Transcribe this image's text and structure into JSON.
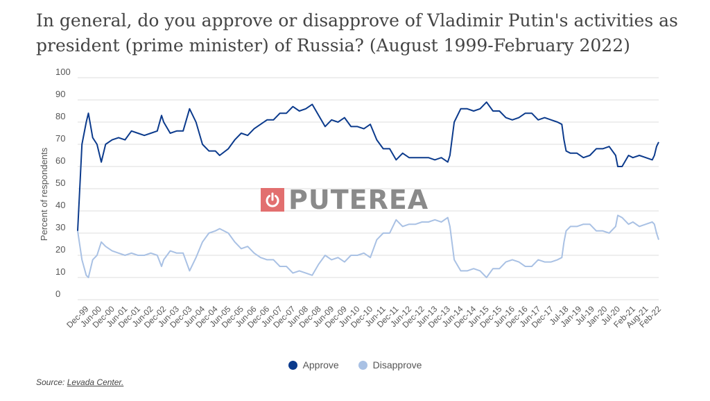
{
  "title": "In general, do you approve or disapprove of Vladimir Putin's activities as president (prime minister) of Russia? (August 1999-February 2022)",
  "source_prefix": "Source:",
  "source_link": "Levada Center.",
  "watermark": "PUTEREA",
  "chart_data": {
    "type": "line",
    "title": "In general, do you approve or disapprove of Vladimir Putin's activities as president (prime minister) of Russia? (August 1999-February 2022)",
    "xlabel": "",
    "ylabel": "Percent of respondents",
    "ylim": [
      0,
      100
    ],
    "yticks": [
      0,
      10,
      20,
      30,
      40,
      50,
      60,
      70,
      80,
      90,
      100
    ],
    "x_tick_labels": [
      "Dec-99",
      "Jun-00",
      "Dec-00",
      "Jun-01",
      "Dec-01",
      "Jun-02",
      "Dec-02",
      "Jun-03",
      "Dec-03",
      "Jun-04",
      "Dec-04",
      "Jun-05",
      "Dec-05",
      "Jun-06",
      "Dec-06",
      "Jun-07",
      "Dec-07",
      "Jun-08",
      "Dec-08",
      "Jun-09",
      "Dec-09",
      "Jun-10",
      "Dec-10",
      "Jun-11",
      "Dec-11",
      "Jun-12",
      "Dec-12",
      "Jun-13",
      "Dec-13",
      "Jun-14",
      "Dec-14",
      "Jun-15",
      "Dec-15",
      "Jun-16",
      "Dec-16",
      "Jun-17",
      "Dec-17",
      "Jul-18",
      "Jan-19",
      "Jul-19",
      "Jan-20",
      "Jul-20",
      "Feb-21",
      "Aug-21",
      "Feb-22"
    ],
    "grid": true,
    "legend_position": "bottom-center",
    "series": [
      {
        "name": "Approve",
        "color": "#0b3a8c",
        "points": [
          [
            "1999-08",
            31
          ],
          [
            "1999-10",
            70
          ],
          [
            "1999-12",
            80
          ],
          [
            "2000-01",
            84
          ],
          [
            "2000-03",
            73
          ],
          [
            "2000-05",
            70
          ],
          [
            "2000-07",
            62
          ],
          [
            "2000-09",
            70
          ],
          [
            "2000-12",
            72
          ],
          [
            "2001-03",
            73
          ],
          [
            "2001-06",
            72
          ],
          [
            "2001-09",
            76
          ],
          [
            "2001-12",
            75
          ],
          [
            "2002-03",
            74
          ],
          [
            "2002-06",
            75
          ],
          [
            "2002-09",
            76
          ],
          [
            "2002-11",
            83
          ],
          [
            "2002-12",
            80
          ],
          [
            "2003-03",
            75
          ],
          [
            "2003-06",
            76
          ],
          [
            "2003-09",
            76
          ],
          [
            "2003-12",
            86
          ],
          [
            "2004-03",
            80
          ],
          [
            "2004-06",
            70
          ],
          [
            "2004-09",
            67
          ],
          [
            "2004-12",
            67
          ],
          [
            "2005-02",
            65
          ],
          [
            "2005-06",
            68
          ],
          [
            "2005-09",
            72
          ],
          [
            "2005-12",
            75
          ],
          [
            "2006-03",
            74
          ],
          [
            "2006-06",
            77
          ],
          [
            "2006-09",
            79
          ],
          [
            "2006-12",
            81
          ],
          [
            "2007-03",
            81
          ],
          [
            "2007-06",
            84
          ],
          [
            "2007-09",
            84
          ],
          [
            "2007-12",
            87
          ],
          [
            "2008-03",
            85
          ],
          [
            "2008-06",
            86
          ],
          [
            "2008-09",
            88
          ],
          [
            "2008-12",
            83
          ],
          [
            "2009-03",
            78
          ],
          [
            "2009-06",
            81
          ],
          [
            "2009-09",
            80
          ],
          [
            "2009-12",
            82
          ],
          [
            "2010-03",
            78
          ],
          [
            "2010-06",
            78
          ],
          [
            "2010-09",
            77
          ],
          [
            "2010-12",
            79
          ],
          [
            "2011-03",
            72
          ],
          [
            "2011-06",
            68
          ],
          [
            "2011-09",
            68
          ],
          [
            "2011-12",
            63
          ],
          [
            "2012-03",
            66
          ],
          [
            "2012-06",
            64
          ],
          [
            "2012-09",
            64
          ],
          [
            "2012-12",
            64
          ],
          [
            "2013-03",
            64
          ],
          [
            "2013-06",
            63
          ],
          [
            "2013-09",
            64
          ],
          [
            "2013-12",
            62
          ],
          [
            "2014-01",
            65
          ],
          [
            "2014-03",
            80
          ],
          [
            "2014-06",
            86
          ],
          [
            "2014-09",
            86
          ],
          [
            "2014-12",
            85
          ],
          [
            "2015-03",
            86
          ],
          [
            "2015-06",
            89
          ],
          [
            "2015-09",
            85
          ],
          [
            "2015-12",
            85
          ],
          [
            "2016-03",
            82
          ],
          [
            "2016-06",
            81
          ],
          [
            "2016-09",
            82
          ],
          [
            "2016-12",
            84
          ],
          [
            "2017-03",
            84
          ],
          [
            "2017-06",
            81
          ],
          [
            "2017-09",
            82
          ],
          [
            "2017-12",
            81
          ],
          [
            "2018-03",
            80
          ],
          [
            "2018-05",
            79
          ],
          [
            "2018-06",
            72
          ],
          [
            "2018-07",
            67
          ],
          [
            "2018-09",
            66
          ],
          [
            "2018-12",
            66
          ],
          [
            "2019-03",
            64
          ],
          [
            "2019-06",
            65
          ],
          [
            "2019-09",
            68
          ],
          [
            "2019-12",
            68
          ],
          [
            "2020-03",
            69
          ],
          [
            "2020-06",
            65
          ],
          [
            "2020-07",
            60
          ],
          [
            "2020-09",
            60
          ],
          [
            "2020-12",
            65
          ],
          [
            "2021-02",
            64
          ],
          [
            "2021-05",
            65
          ],
          [
            "2021-08",
            64
          ],
          [
            "2021-11",
            63
          ],
          [
            "2021-12",
            65
          ],
          [
            "2022-01",
            69
          ],
          [
            "2022-02",
            71
          ]
        ]
      },
      {
        "name": "Disapprove",
        "color": "#a9c1e4",
        "points": [
          [
            "1999-08",
            31
          ],
          [
            "1999-10",
            18
          ],
          [
            "1999-12",
            11
          ],
          [
            "2000-01",
            10
          ],
          [
            "2000-03",
            18
          ],
          [
            "2000-05",
            20
          ],
          [
            "2000-07",
            26
          ],
          [
            "2000-09",
            24
          ],
          [
            "2000-12",
            22
          ],
          [
            "2001-03",
            21
          ],
          [
            "2001-06",
            20
          ],
          [
            "2001-09",
            21
          ],
          [
            "2001-12",
            20
          ],
          [
            "2002-03",
            20
          ],
          [
            "2002-06",
            21
          ],
          [
            "2002-09",
            20
          ],
          [
            "2002-11",
            15
          ],
          [
            "2002-12",
            18
          ],
          [
            "2003-03",
            22
          ],
          [
            "2003-06",
            21
          ],
          [
            "2003-09",
            21
          ],
          [
            "2003-12",
            13
          ],
          [
            "2004-03",
            19
          ],
          [
            "2004-06",
            26
          ],
          [
            "2004-09",
            30
          ],
          [
            "2004-12",
            31
          ],
          [
            "2005-02",
            32
          ],
          [
            "2005-06",
            30
          ],
          [
            "2005-09",
            26
          ],
          [
            "2005-12",
            23
          ],
          [
            "2006-03",
            24
          ],
          [
            "2006-06",
            21
          ],
          [
            "2006-09",
            19
          ],
          [
            "2006-12",
            18
          ],
          [
            "2007-03",
            18
          ],
          [
            "2007-06",
            15
          ],
          [
            "2007-09",
            15
          ],
          [
            "2007-12",
            12
          ],
          [
            "2008-03",
            13
          ],
          [
            "2008-06",
            12
          ],
          [
            "2008-09",
            11
          ],
          [
            "2008-12",
            16
          ],
          [
            "2009-03",
            20
          ],
          [
            "2009-06",
            18
          ],
          [
            "2009-09",
            19
          ],
          [
            "2009-12",
            17
          ],
          [
            "2010-03",
            20
          ],
          [
            "2010-06",
            20
          ],
          [
            "2010-09",
            21
          ],
          [
            "2010-12",
            19
          ],
          [
            "2011-03",
            27
          ],
          [
            "2011-06",
            30
          ],
          [
            "2011-09",
            30
          ],
          [
            "2011-12",
            36
          ],
          [
            "2012-03",
            33
          ],
          [
            "2012-06",
            34
          ],
          [
            "2012-09",
            34
          ],
          [
            "2012-12",
            35
          ],
          [
            "2013-03",
            35
          ],
          [
            "2013-06",
            36
          ],
          [
            "2013-09",
            35
          ],
          [
            "2013-12",
            37
          ],
          [
            "2014-01",
            33
          ],
          [
            "2014-03",
            18
          ],
          [
            "2014-06",
            13
          ],
          [
            "2014-09",
            13
          ],
          [
            "2014-12",
            14
          ],
          [
            "2015-03",
            13
          ],
          [
            "2015-06",
            10
          ],
          [
            "2015-09",
            14
          ],
          [
            "2015-12",
            14
          ],
          [
            "2016-03",
            17
          ],
          [
            "2016-06",
            18
          ],
          [
            "2016-09",
            17
          ],
          [
            "2016-12",
            15
          ],
          [
            "2017-03",
            15
          ],
          [
            "2017-06",
            18
          ],
          [
            "2017-09",
            17
          ],
          [
            "2017-12",
            17
          ],
          [
            "2018-03",
            18
          ],
          [
            "2018-05",
            19
          ],
          [
            "2018-06",
            26
          ],
          [
            "2018-07",
            31
          ],
          [
            "2018-09",
            33
          ],
          [
            "2018-12",
            33
          ],
          [
            "2019-03",
            34
          ],
          [
            "2019-06",
            34
          ],
          [
            "2019-09",
            31
          ],
          [
            "2019-12",
            31
          ],
          [
            "2020-03",
            30
          ],
          [
            "2020-06",
            33
          ],
          [
            "2020-07",
            38
          ],
          [
            "2020-09",
            37
          ],
          [
            "2020-12",
            34
          ],
          [
            "2021-02",
            35
          ],
          [
            "2021-05",
            33
          ],
          [
            "2021-08",
            34
          ],
          [
            "2021-11",
            35
          ],
          [
            "2021-12",
            34
          ],
          [
            "2022-01",
            30
          ],
          [
            "2022-02",
            27
          ]
        ]
      }
    ]
  }
}
